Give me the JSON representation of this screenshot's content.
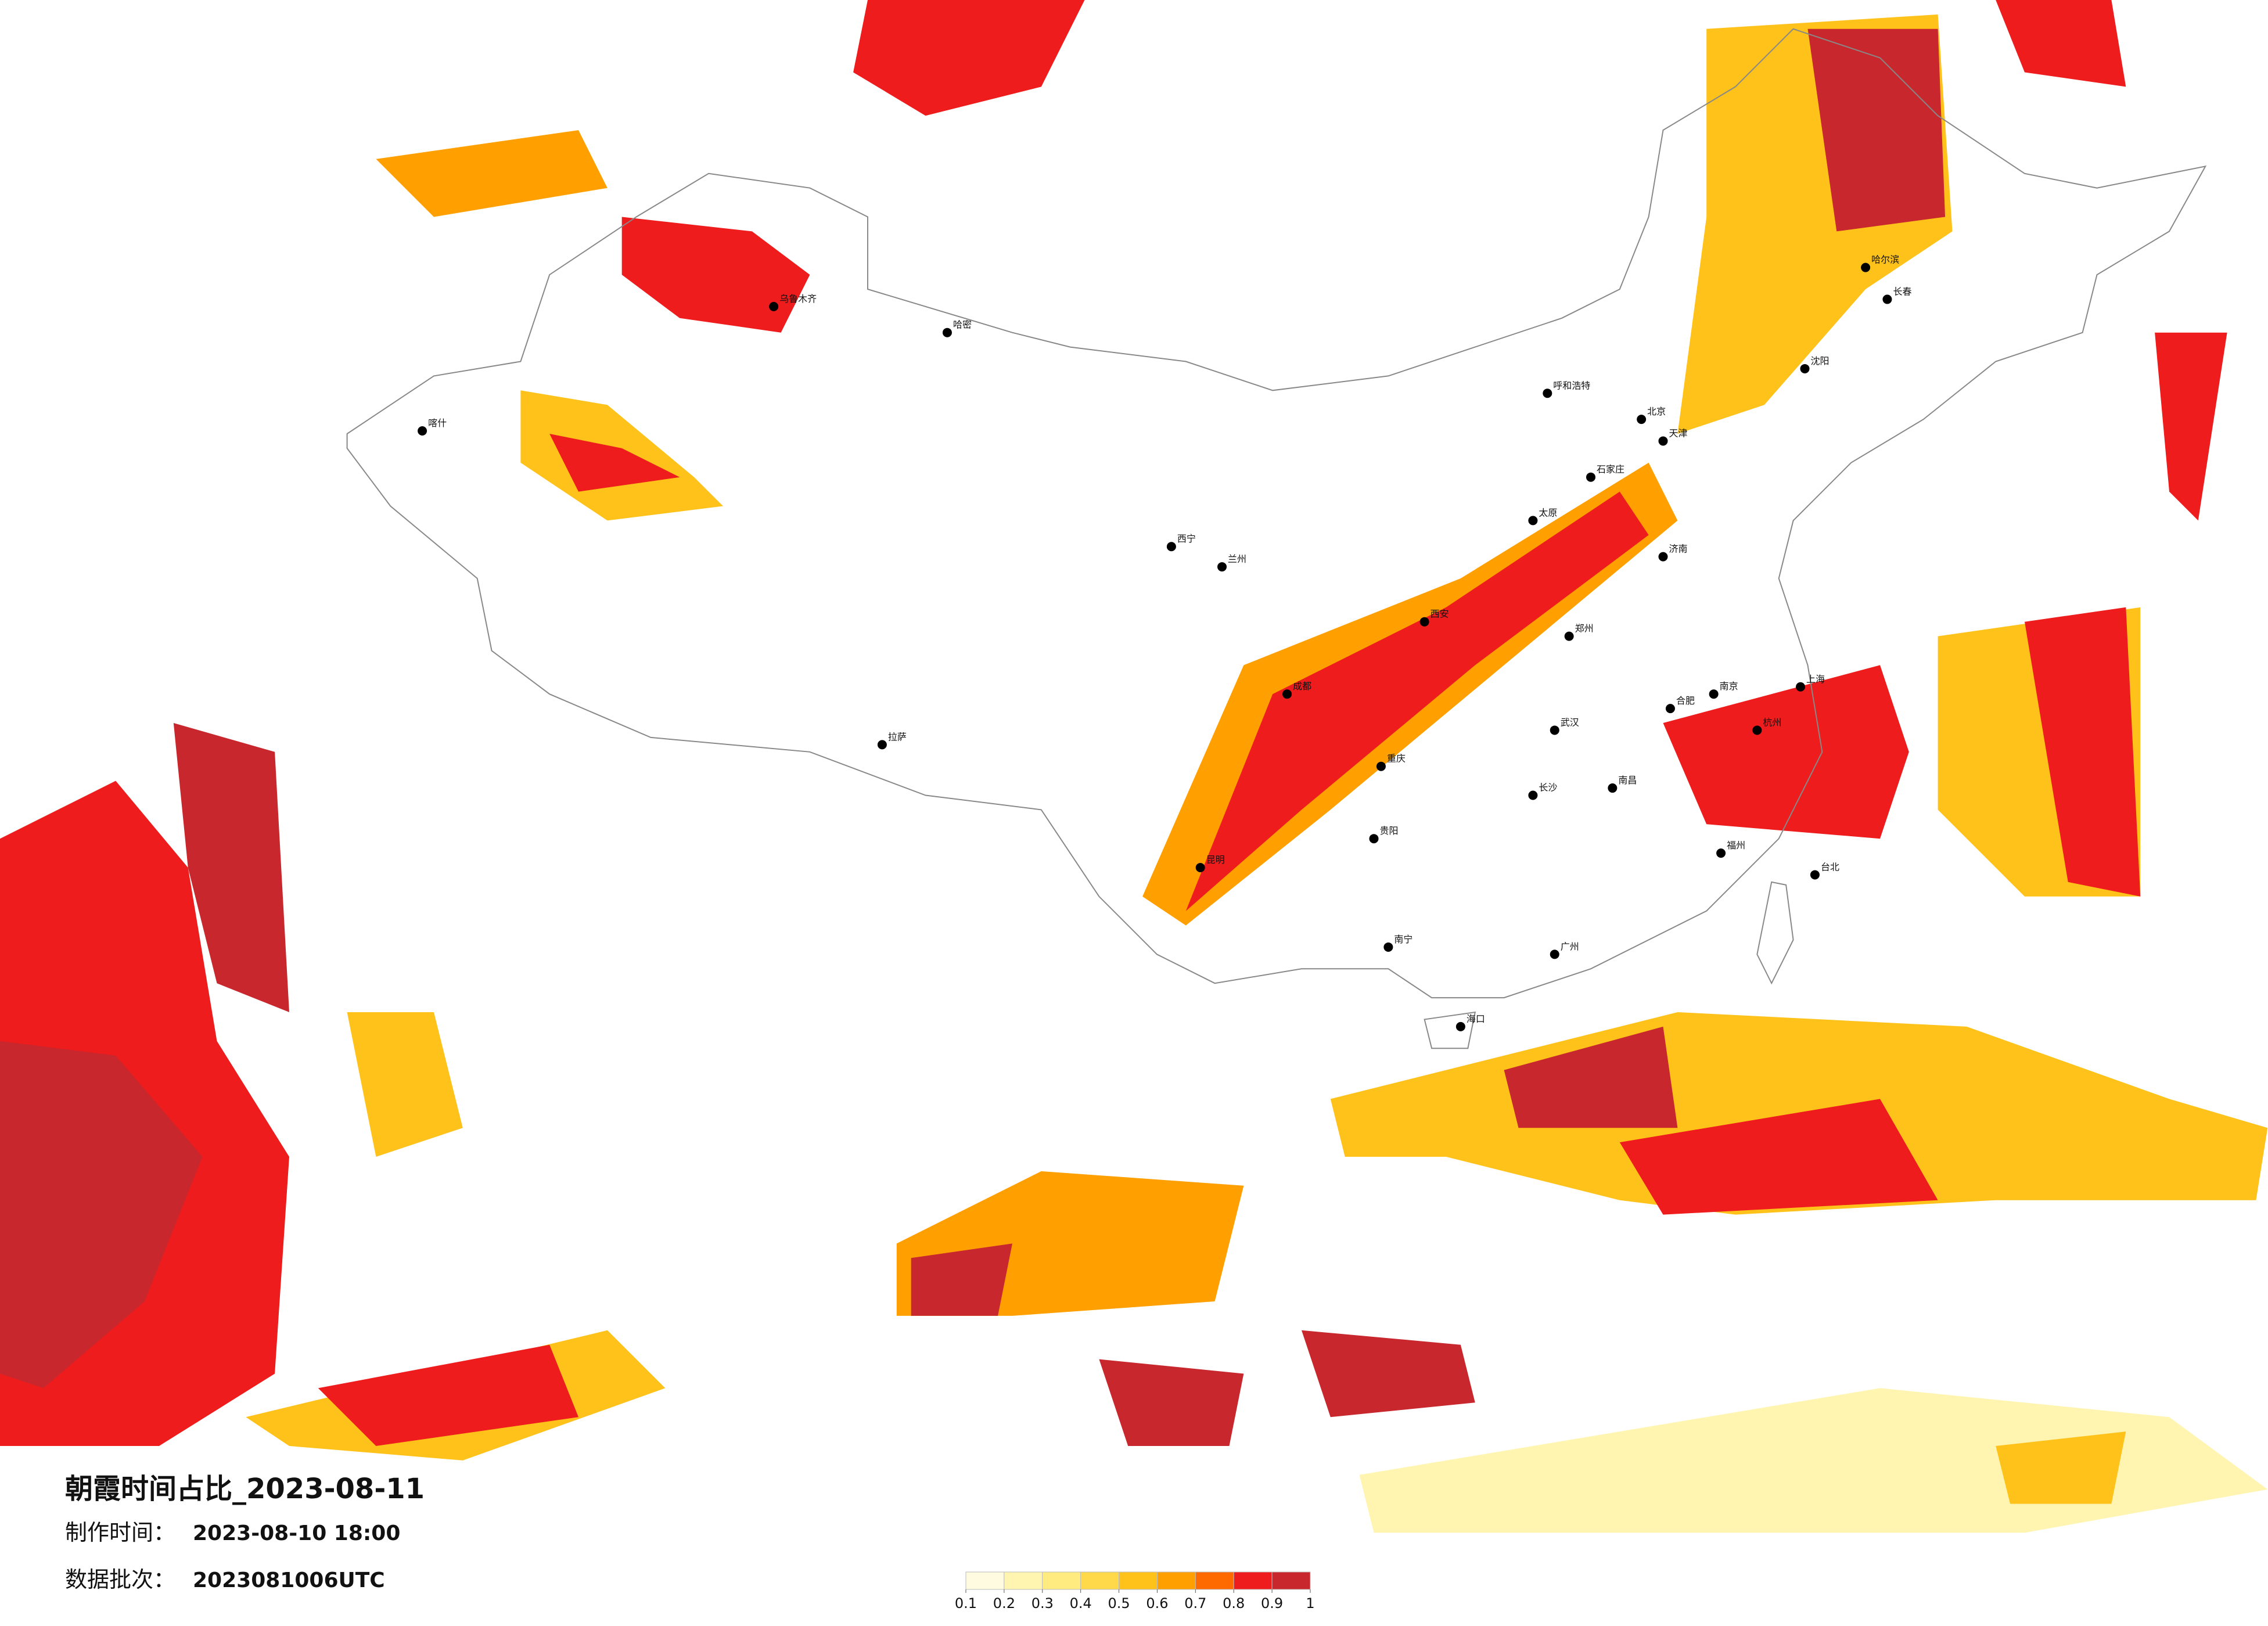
{
  "title": "朝霞时间占比_2023-08-11",
  "production_time": {
    "label": "制作时间：",
    "value": "2023-08-10 18:00"
  },
  "data_batch": {
    "label": "数据批次：",
    "value": "2023081006UTC"
  },
  "colorbar": {
    "colors": [
      "#fffbe0",
      "#fff4b0",
      "#ffeb80",
      "#ffd94a",
      "#ffc21a",
      "#ffa000",
      "#ff6a00",
      "#ee1c1c",
      "#c8282d"
    ],
    "ticks": [
      0.1,
      0.2,
      0.3,
      0.4,
      0.5,
      0.6,
      0.7,
      0.8,
      0.9,
      1
    ]
  },
  "cities": [
    {
      "name": "乌鲁木齐"
    },
    {
      "name": "哈密"
    },
    {
      "name": "喀什"
    },
    {
      "name": "拉萨"
    },
    {
      "name": "西宁"
    },
    {
      "name": "兰州"
    },
    {
      "name": "呼和浩特"
    },
    {
      "name": "北京"
    },
    {
      "name": "哈尔滨"
    },
    {
      "name": "长春"
    },
    {
      "name": "沈阳"
    },
    {
      "name": "天津"
    },
    {
      "name": "石家庄"
    },
    {
      "name": "太原"
    },
    {
      "name": "郑州"
    },
    {
      "name": "西安"
    },
    {
      "name": "成都"
    },
    {
      "name": "重庆"
    },
    {
      "name": "贵阳"
    },
    {
      "name": "昆明"
    },
    {
      "name": "南宁"
    },
    {
      "name": "广州"
    },
    {
      "name": "福州"
    },
    {
      "name": "杭州"
    },
    {
      "name": "上海"
    },
    {
      "name": "南京"
    },
    {
      "name": "武汉"
    },
    {
      "name": "长沙"
    },
    {
      "name": "南昌"
    },
    {
      "name": "合肥"
    },
    {
      "name": "济南"
    },
    {
      "name": "海口"
    },
    {
      "name": "台北"
    }
  ]
}
